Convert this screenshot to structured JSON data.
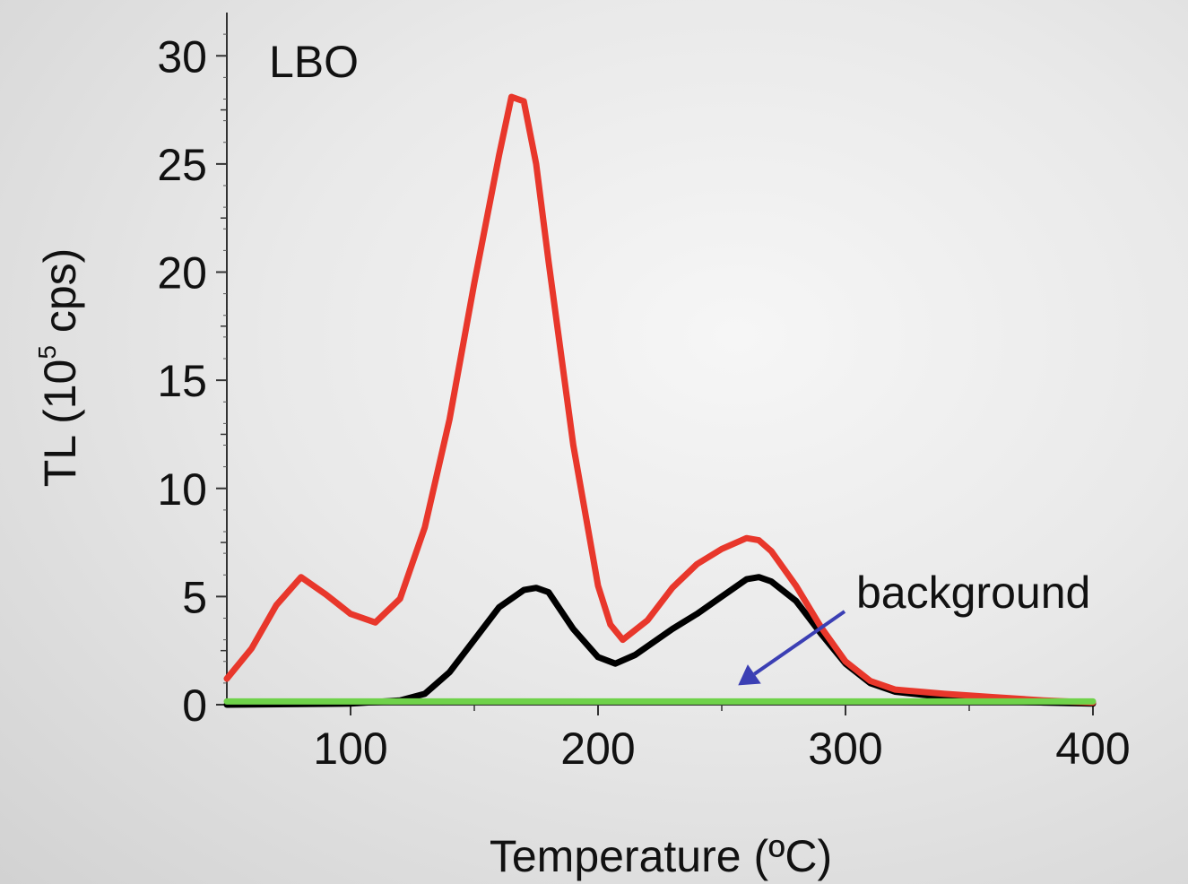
{
  "chart_data": {
    "type": "line",
    "panel_label": "LBO",
    "xlabel": "Temperature (ºC)",
    "ylabel_pre": "TL (10",
    "ylabel_sup": "5",
    "ylabel_post": " cps)",
    "xlim": [
      50,
      400
    ],
    "ylim": [
      0,
      32
    ],
    "xticks": [
      100,
      200,
      300,
      400
    ],
    "yticks": [
      0,
      5,
      10,
      15,
      20,
      25,
      30
    ],
    "grid": false,
    "annotation": {
      "text": "background",
      "arrow_target": [
        253,
        0.4
      ]
    },
    "series": [
      {
        "color": "#e8372b",
        "points": [
          [
            50,
            1.2
          ],
          [
            60,
            2.6
          ],
          [
            70,
            4.6
          ],
          [
            80,
            5.9
          ],
          [
            90,
            5.1
          ],
          [
            100,
            4.2
          ],
          [
            110,
            3.8
          ],
          [
            120,
            4.9
          ],
          [
            130,
            8.2
          ],
          [
            140,
            13.2
          ],
          [
            150,
            19.5
          ],
          [
            160,
            25.4
          ],
          [
            165,
            28.1
          ],
          [
            170,
            27.9
          ],
          [
            175,
            25.0
          ],
          [
            180,
            20.5
          ],
          [
            190,
            12.0
          ],
          [
            200,
            5.5
          ],
          [
            205,
            3.7
          ],
          [
            210,
            3.0
          ],
          [
            220,
            3.9
          ],
          [
            230,
            5.4
          ],
          [
            240,
            6.5
          ],
          [
            250,
            7.2
          ],
          [
            260,
            7.7
          ],
          [
            265,
            7.6
          ],
          [
            270,
            7.1
          ],
          [
            280,
            5.5
          ],
          [
            290,
            3.6
          ],
          [
            300,
            2.0
          ],
          [
            310,
            1.1
          ],
          [
            320,
            0.7
          ],
          [
            340,
            0.5
          ],
          [
            360,
            0.35
          ],
          [
            380,
            0.2
          ],
          [
            400,
            0.1
          ]
        ]
      },
      {
        "color": "#000000",
        "points": [
          [
            50,
            0
          ],
          [
            100,
            0.05
          ],
          [
            120,
            0.2
          ],
          [
            130,
            0.5
          ],
          [
            140,
            1.5
          ],
          [
            150,
            3.0
          ],
          [
            160,
            4.5
          ],
          [
            170,
            5.3
          ],
          [
            175,
            5.4
          ],
          [
            180,
            5.2
          ],
          [
            190,
            3.5
          ],
          [
            200,
            2.2
          ],
          [
            207,
            1.9
          ],
          [
            215,
            2.3
          ],
          [
            230,
            3.5
          ],
          [
            240,
            4.2
          ],
          [
            250,
            5.0
          ],
          [
            260,
            5.8
          ],
          [
            265,
            5.9
          ],
          [
            270,
            5.7
          ],
          [
            280,
            4.8
          ],
          [
            290,
            3.3
          ],
          [
            300,
            1.9
          ],
          [
            310,
            1.0
          ],
          [
            320,
            0.6
          ],
          [
            340,
            0.35
          ],
          [
            360,
            0.2
          ],
          [
            380,
            0.1
          ],
          [
            400,
            0.05
          ]
        ]
      },
      {
        "color": "#6fd24a",
        "points": [
          [
            50,
            0.15
          ],
          [
            400,
            0.15
          ]
        ]
      }
    ]
  }
}
